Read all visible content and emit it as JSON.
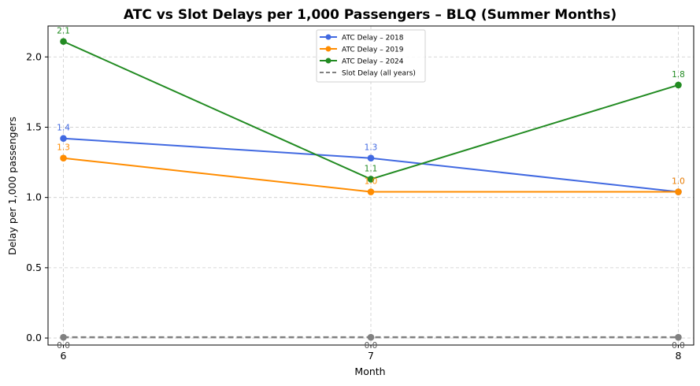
{
  "chart_data": {
    "type": "line",
    "title": "ATC vs Slot Delays per 1,000 Passengers – BLQ (Summer Months)",
    "xlabel": "Month",
    "ylabel": "Delay per 1,000 passengers",
    "x": [
      6,
      7,
      8
    ],
    "xticks": [
      "6",
      "7",
      "8"
    ],
    "yticks": [
      "0.0",
      "0.5",
      "1.0",
      "1.5",
      "2.0"
    ],
    "ylim": [
      -0.05,
      2.22
    ],
    "xlim": [
      5.95,
      8.05
    ],
    "grid": true,
    "legend_position": "top-center",
    "series": [
      {
        "name": "ATC Delay – 2018",
        "values": [
          1.42,
          1.28,
          1.04
        ],
        "labels": [
          "1.4",
          "1.3",
          "1.0"
        ],
        "color": "#4169E1",
        "style": "solid"
      },
      {
        "name": "ATC Delay – 2019",
        "values": [
          1.28,
          1.04,
          1.04
        ],
        "labels": [
          "1.3",
          "1.0",
          "1.0"
        ],
        "color": "#FF8C00",
        "style": "solid"
      },
      {
        "name": "ATC Delay – 2024",
        "values": [
          2.11,
          1.13,
          1.8
        ],
        "labels": [
          "2.1",
          "1.1",
          "1.8"
        ],
        "color": "#228B22",
        "style": "solid"
      },
      {
        "name": "Slot Delay (all years)",
        "values": [
          0.005,
          0.005,
          0.005
        ],
        "labels": [
          "0.0",
          "0.0",
          "0.0"
        ],
        "color": "#808080",
        "style": "dashed"
      }
    ]
  }
}
